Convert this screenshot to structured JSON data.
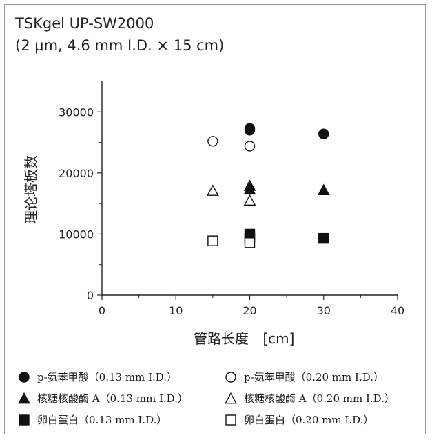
{
  "header": {
    "title_line1": "TSKgel UP-SW2000",
    "title_line2": "(2 µm, 4.6 mm I.D. × 15 cm)"
  },
  "chart_data": {
    "type": "scatter",
    "title": "TSKgel UP-SW2000 (2 µm, 4.6 mm I.D. × 15 cm)",
    "xlabel_cn": "管路长度",
    "xlabel_unit": "[cm]",
    "ylabel": "理论塔板数",
    "xlim": [
      0,
      40
    ],
    "ylim": [
      0,
      35000
    ],
    "xticks": [
      0,
      10,
      20,
      30,
      40
    ],
    "yticks": [
      0,
      10000,
      20000,
      30000
    ],
    "grid": false,
    "legend_position": "bottom",
    "series": [
      {
        "name": "p-氨苯甲酸（0.13 mm I.D.）",
        "marker": "circle",
        "filled": true,
        "points": [
          [
            20,
            27000
          ],
          [
            20,
            27300
          ],
          [
            30,
            26400
          ]
        ]
      },
      {
        "name": "p-氨苯甲酸（0.20 mm I.D.）",
        "marker": "circle",
        "filled": false,
        "points": [
          [
            15,
            25200
          ],
          [
            20,
            24400
          ]
        ]
      },
      {
        "name": "核糖核酸酶 A（0.13 mm I.D.）",
        "marker": "triangle",
        "filled": true,
        "points": [
          [
            20,
            17300
          ],
          [
            20,
            17900
          ],
          [
            30,
            17200
          ]
        ]
      },
      {
        "name": "核糖核酸酶 A（0.20 mm I.D.）",
        "marker": "triangle",
        "filled": false,
        "points": [
          [
            15,
            17100
          ],
          [
            20,
            15500
          ]
        ]
      },
      {
        "name": "卵白蛋白（0.13 mm I.D.）",
        "marker": "square",
        "filled": true,
        "points": [
          [
            20,
            9300
          ],
          [
            20,
            10000
          ],
          [
            30,
            9300
          ]
        ]
      },
      {
        "name": "卵白蛋白（0.20 mm I.D.）",
        "marker": "square",
        "filled": false,
        "points": [
          [
            15,
            8900
          ],
          [
            20,
            8600
          ]
        ]
      }
    ]
  }
}
